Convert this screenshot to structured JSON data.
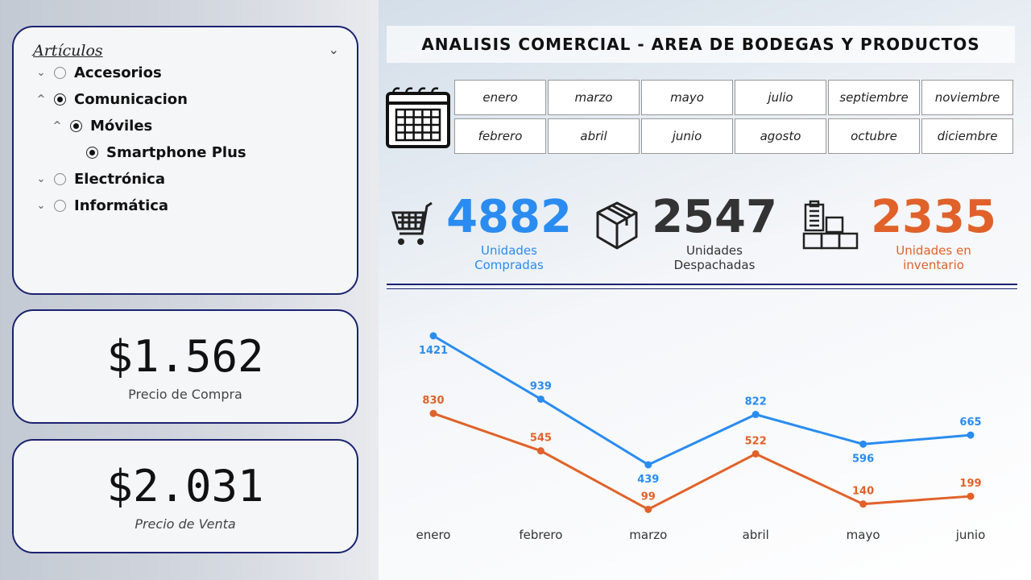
{
  "slicer": {
    "title": "Artículos",
    "items": [
      {
        "label": "Accesorios",
        "toggle": "⌄",
        "selected": false,
        "level": 0
      },
      {
        "label": "Comunicacion",
        "toggle": "^",
        "selected": true,
        "level": 0
      },
      {
        "label": "Móviles",
        "toggle": "^",
        "selected": true,
        "level": 1
      },
      {
        "label": "Smartphone Plus",
        "toggle": "",
        "selected": true,
        "level": 2
      },
      {
        "label": "Electrónica",
        "toggle": "⌄",
        "selected": false,
        "level": 0
      },
      {
        "label": "Informática",
        "toggle": "⌄",
        "selected": false,
        "level": 0
      }
    ]
  },
  "cards": {
    "compra": {
      "value": "$1.562",
      "label": "Precio de Compra"
    },
    "venta": {
      "value": "$2.031",
      "label": "Precio de Venta"
    }
  },
  "title": "ANALISIS COMERCIAL - AREA DE BODEGAS Y PRODUCTOS",
  "months": [
    "enero",
    "marzo",
    "mayo",
    "julio",
    "septiembre",
    "noviembre",
    "febrero",
    "abril",
    "junio",
    "agosto",
    "octubre",
    "diciembre"
  ],
  "kpis": [
    {
      "value": "4882",
      "label": "Unidades Compradas",
      "color": "#2a8cf0"
    },
    {
      "value": "2547",
      "label": "Unidades Despachadas",
      "color": "#333333"
    },
    {
      "value": "2335",
      "label": "Unidades en inventario",
      "color": "#e0622a"
    }
  ],
  "chart_data": {
    "type": "line",
    "categories": [
      "enero",
      "febrero",
      "marzo",
      "abril",
      "mayo",
      "junio"
    ],
    "series": [
      {
        "name": "Unidades Compradas",
        "color": "#2a8cf0",
        "values": [
          1421,
          939,
          439,
          822,
          596,
          665
        ]
      },
      {
        "name": "Unidades en inventario",
        "color": "#e0622a",
        "values": [
          830,
          545,
          99,
          522,
          140,
          199
        ]
      }
    ]
  }
}
